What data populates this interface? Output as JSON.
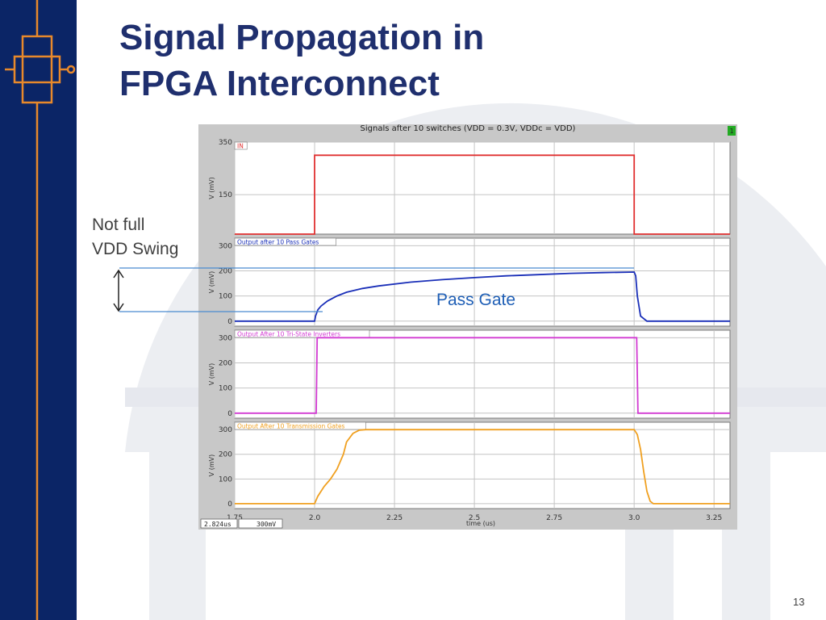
{
  "slide": {
    "title_line1": "Signal Propagation in",
    "title_line2": "FPGA Interconnect",
    "annotation_line1": "Not full",
    "annotation_line2": "VDD Swing",
    "series_callout": "Pass Gate",
    "page_number": "13"
  },
  "colors": {
    "sidebar": "#0b2566",
    "sidebar_icon": "#e8892b",
    "title": "#1f2f6e",
    "callout": "#1f5fb6",
    "guide_lines": "#4a8bd0"
  },
  "chart_data": {
    "type": "line",
    "title": "Signals after 10 switches (VDD = 0.3V, VDDc = VDD)",
    "xlabel": "time (us)",
    "xlim": [
      1.75,
      3.3
    ],
    "x_ticks": [
      "1.75",
      "2.0",
      "2.25",
      "2.5",
      "2.75",
      "3.0",
      "3.25"
    ],
    "status": {
      "cursor_time": "2.824us",
      "cursor_value": "300mV",
      "badge": "1"
    },
    "panels": [
      {
        "name": "IN",
        "color": "#e03030",
        "ylabel": "V (mV)",
        "ylim": [
          0,
          350
        ],
        "y_ticks": [
          "350",
          "150"
        ],
        "y_tick_values": [
          350,
          150
        ],
        "x": [
          1.75,
          2.0,
          2.0,
          3.0,
          3.0,
          3.3
        ],
        "y": [
          0,
          0,
          300,
          300,
          0,
          0
        ]
      },
      {
        "name": "Output after 10 Pass Gates",
        "color": "#1a2fb8",
        "ylabel": "V (mV)",
        "ylim": [
          -20,
          330
        ],
        "y_ticks": [
          "300",
          "200",
          "100",
          "0"
        ],
        "y_tick_values": [
          300,
          200,
          100,
          0
        ],
        "x": [
          1.75,
          2.0,
          2.003,
          2.01,
          2.02,
          2.04,
          2.07,
          2.1,
          2.15,
          2.2,
          2.3,
          2.4,
          2.5,
          2.6,
          2.7,
          2.8,
          2.9,
          3.0,
          3.005,
          3.01,
          3.02,
          3.04,
          3.3
        ],
        "y": [
          0,
          0,
          20,
          45,
          60,
          80,
          100,
          115,
          130,
          140,
          155,
          165,
          173,
          180,
          185,
          190,
          193,
          195,
          180,
          100,
          20,
          0,
          0
        ]
      },
      {
        "name": "Output After 10 Tri-State Inverters",
        "color": "#d23ad2",
        "ylabel": "V (mV)",
        "ylim": [
          -20,
          330
        ],
        "y_ticks": [
          "300",
          "200",
          "100",
          "0"
        ],
        "y_tick_values": [
          300,
          200,
          100,
          0
        ],
        "x": [
          1.75,
          2.005,
          2.008,
          2.015,
          3.008,
          3.012,
          3.015,
          3.3
        ],
        "y": [
          0,
          0,
          300,
          300,
          300,
          0,
          0,
          0
        ]
      },
      {
        "name": "Output After 10 Transmission Gates",
        "color": "#f0a020",
        "ylabel": "V (mV)",
        "ylim": [
          -20,
          330
        ],
        "y_ticks": [
          "300",
          "200",
          "100",
          "0"
        ],
        "y_tick_values": [
          300,
          200,
          100,
          0
        ],
        "x": [
          1.75,
          2.0,
          2.01,
          2.03,
          2.05,
          2.07,
          2.09,
          2.1,
          2.12,
          2.14,
          2.16,
          2.9,
          3.0,
          3.01,
          3.02,
          3.03,
          3.04,
          3.05,
          3.06,
          3.3
        ],
        "y": [
          0,
          0,
          30,
          70,
          100,
          140,
          200,
          250,
          285,
          298,
          300,
          300,
          300,
          280,
          220,
          130,
          50,
          10,
          0,
          0
        ]
      }
    ]
  }
}
